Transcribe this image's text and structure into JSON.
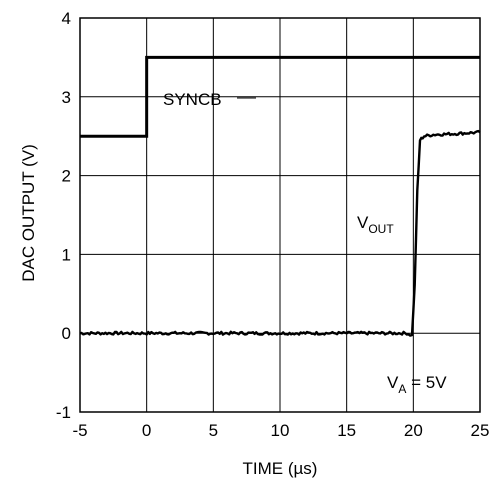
{
  "chart_data": {
    "type": "line",
    "xlabel": "TIME (µs)",
    "ylabel": "DAC OUTPUT (V)",
    "xlim": [
      -5,
      25
    ],
    "ylim": [
      -1,
      4
    ],
    "xticks": [
      -5,
      0,
      5,
      10,
      15,
      20,
      25
    ],
    "yticks": [
      -1,
      0,
      1,
      2,
      3,
      4
    ],
    "grid": true,
    "series": [
      {
        "name": "SYNCB",
        "x": [
          -5,
          0,
          0,
          25
        ],
        "y": [
          2.5,
          2.5,
          3.5,
          3.5
        ]
      },
      {
        "name": "VOUT",
        "x": [
          -5,
          0,
          5,
          10,
          15,
          18,
          19.5,
          19.9,
          20.1,
          20.3,
          20.5,
          20.8,
          21.5,
          23,
          25
        ],
        "y": [
          0.0,
          0.0,
          0.0,
          0.0,
          0.0,
          0.0,
          0.0,
          -0.03,
          0.6,
          1.8,
          2.45,
          2.5,
          2.52,
          2.53,
          2.55
        ]
      }
    ],
    "annotations": {
      "syncb_label": "SYNCB",
      "vout_main": "V",
      "vout_sub": "OUT",
      "va_main": "V",
      "va_sub": "A",
      "va_rest": " = 5V"
    },
    "line_color": "#000000",
    "grid_color": "#000000"
  }
}
